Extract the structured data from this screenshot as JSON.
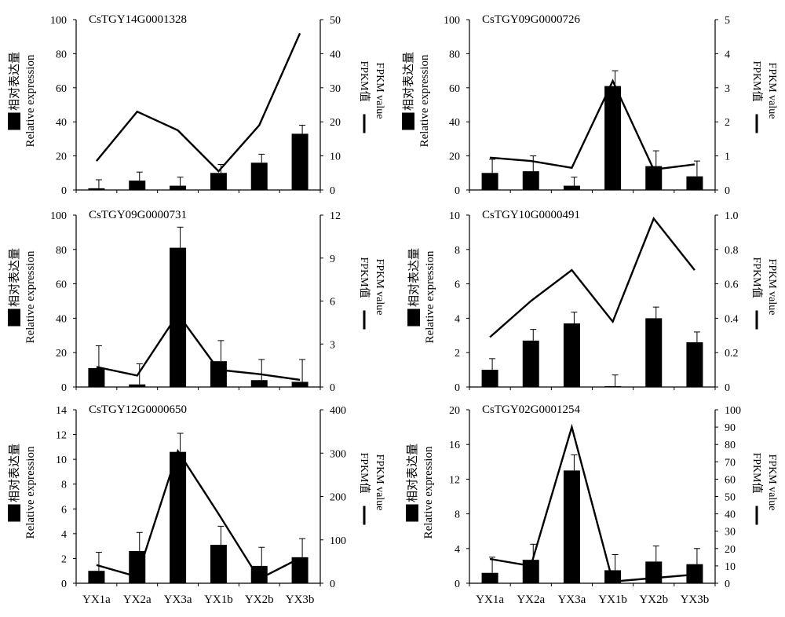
{
  "legend": {
    "bar_label_cn": "相对表达量",
    "bar_label_en": "Relative expression",
    "line_label_cn": "FPKM值",
    "line_label_en": "FPKM value"
  },
  "colors": {
    "bar": "#000000",
    "line": "#000000",
    "axis": "#000000"
  },
  "chart_data": [
    {
      "type": "bar",
      "title": "CsTGY14G0001328",
      "categories": [
        "YX1a",
        "YX2a",
        "YX3a",
        "YX1b",
        "YX2b",
        "YX3b"
      ],
      "show_category_labels": false,
      "left_axis": {
        "label": "Relative expression",
        "ylim": [
          0,
          100
        ],
        "ticks": [
          0,
          20,
          40,
          60,
          80,
          100
        ]
      },
      "right_axis": {
        "label": "FPKM value",
        "ylim": [
          0,
          50
        ],
        "ticks": [
          0,
          10,
          20,
          30,
          40,
          50
        ]
      },
      "series": [
        {
          "name": "Relative expression",
          "kind": "bar",
          "axis": "left",
          "values": [
            1,
            5.5,
            2.5,
            10,
            16,
            33
          ],
          "errors": [
            5,
            5,
            5,
            5,
            5,
            5
          ]
        },
        {
          "name": "FPKM value",
          "kind": "line",
          "axis": "right",
          "values": [
            8.5,
            23,
            17.5,
            5.5,
            19,
            46
          ]
        }
      ]
    },
    {
      "type": "bar",
      "title": "CsTGY09G0000726",
      "categories": [
        "YX1a",
        "YX2a",
        "YX3a",
        "YX1b",
        "YX2b",
        "YX3b"
      ],
      "show_category_labels": false,
      "left_axis": {
        "label": "Relative expression",
        "ylim": [
          0,
          100
        ],
        "ticks": [
          0,
          20,
          40,
          60,
          80,
          100
        ]
      },
      "right_axis": {
        "label": "FPKM value",
        "ylim": [
          0,
          5
        ],
        "ticks": [
          0,
          1,
          2,
          3,
          4,
          5
        ]
      },
      "series": [
        {
          "name": "Relative expression",
          "kind": "bar",
          "axis": "left",
          "values": [
            10,
            11,
            2.5,
            61,
            14,
            8
          ],
          "errors": [
            8,
            9,
            5,
            9,
            9,
            9
          ]
        },
        {
          "name": "FPKM value",
          "kind": "line",
          "axis": "right",
          "values": [
            0.95,
            0.85,
            0.65,
            3.2,
            0.6,
            0.75
          ]
        }
      ]
    },
    {
      "type": "bar",
      "title": "CsTGY09G0000731",
      "categories": [
        "YX1a",
        "YX2a",
        "YX3a",
        "YX1b",
        "YX2b",
        "YX3b"
      ],
      "show_category_labels": false,
      "left_axis": {
        "label": "Relative expression",
        "ylim": [
          0,
          100
        ],
        "ticks": [
          0,
          20,
          40,
          60,
          80,
          100
        ]
      },
      "right_axis": {
        "label": "FPKM value",
        "ylim": [
          0,
          12
        ],
        "ticks": [
          0,
          3,
          6,
          9,
          12
        ]
      },
      "series": [
        {
          "name": "Relative expression",
          "kind": "bar",
          "axis": "left",
          "values": [
            11,
            1.5,
            81,
            15,
            4,
            3
          ],
          "errors": [
            13,
            12,
            12,
            12,
            12,
            13
          ]
        },
        {
          "name": "FPKM value",
          "kind": "line",
          "axis": "right",
          "values": [
            1.4,
            0.8,
            5.1,
            1.2,
            0.9,
            0.5
          ]
        }
      ]
    },
    {
      "type": "bar",
      "title": "CsTGY10G0000491",
      "categories": [
        "YX1a",
        "YX2a",
        "YX3a",
        "YX1b",
        "YX2b",
        "YX3b"
      ],
      "show_category_labels": false,
      "left_axis": {
        "label": "Relative expression",
        "ylim": [
          0,
          10
        ],
        "ticks": [
          0,
          2,
          4,
          6,
          8,
          10
        ]
      },
      "right_axis": {
        "label": "FPKM value",
        "ylim": [
          0,
          1.0
        ],
        "ticks": [
          "0",
          "0.2",
          "0.4",
          "0.6",
          "0.8",
          "1.0"
        ]
      },
      "series": [
        {
          "name": "Relative expression",
          "kind": "bar",
          "axis": "left",
          "values": [
            1.0,
            2.7,
            3.7,
            0.05,
            4.0,
            2.6
          ],
          "errors": [
            0.65,
            0.65,
            0.65,
            0.65,
            0.65,
            0.6
          ]
        },
        {
          "name": "FPKM value",
          "kind": "line",
          "axis": "right",
          "values": [
            0.29,
            0.5,
            0.68,
            0.38,
            0.98,
            0.68
          ]
        }
      ]
    },
    {
      "type": "bar",
      "title": "CsTGY12G0000650",
      "categories": [
        "YX1a",
        "YX2a",
        "YX3a",
        "YX1b",
        "YX2b",
        "YX3b"
      ],
      "show_category_labels": true,
      "left_axis": {
        "label": "Relative expression",
        "ylim": [
          0,
          14
        ],
        "ticks": [
          0,
          2,
          4,
          6,
          8,
          10,
          12,
          14
        ]
      },
      "right_axis": {
        "label": "FPKM value",
        "ylim": [
          0,
          400
        ],
        "ticks": [
          0,
          100,
          200,
          300,
          400
        ]
      },
      "series": [
        {
          "name": "Relative expression",
          "kind": "bar",
          "axis": "left",
          "values": [
            1.0,
            2.6,
            10.6,
            3.1,
            1.4,
            2.1
          ],
          "errors": [
            1.5,
            1.5,
            1.5,
            1.5,
            1.5,
            1.5
          ]
        },
        {
          "name": "FPKM value",
          "kind": "line",
          "axis": "right",
          "values": [
            42,
            15,
            305,
            160,
            10,
            58
          ]
        }
      ]
    },
    {
      "type": "bar",
      "title": "CsTGY02G0001254",
      "categories": [
        "YX1a",
        "YX2a",
        "YX3a",
        "YX1b",
        "YX2b",
        "YX3b"
      ],
      "show_category_labels": true,
      "left_axis": {
        "label": "Relative expression",
        "ylim": [
          0,
          20
        ],
        "ticks": [
          0,
          4,
          8,
          12,
          16,
          20
        ]
      },
      "right_axis": {
        "label": "FPKM value",
        "ylim": [
          0,
          100
        ],
        "ticks": [
          0,
          10,
          20,
          30,
          40,
          50,
          60,
          70,
          80,
          90,
          100
        ]
      },
      "series": [
        {
          "name": "Relative expression",
          "kind": "bar",
          "axis": "left",
          "values": [
            1.2,
            2.7,
            13.0,
            1.5,
            2.5,
            2.2
          ],
          "errors": [
            1.8,
            1.8,
            1.8,
            1.8,
            1.8,
            1.8
          ]
        },
        {
          "name": "FPKM value",
          "kind": "line",
          "axis": "right",
          "values": [
            14,
            10,
            90,
            1,
            3,
            5
          ]
        }
      ]
    }
  ]
}
